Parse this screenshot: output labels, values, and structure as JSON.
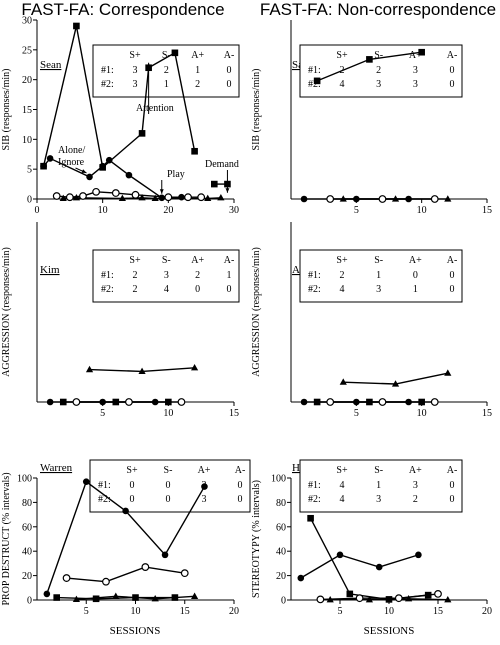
{
  "titles": {
    "left": "FAST-FA: Correspondence",
    "right": "FAST-FA: Non-correspondence"
  },
  "xlabel": "SESSIONS",
  "panels": [
    {
      "id": "sean",
      "subject": "Sean",
      "ylabel": "SIB (responses/min)",
      "table": {
        "headers": [
          "S+",
          "S-",
          "A+",
          "A-"
        ],
        "rows": [
          {
            "label": "#1:",
            "values": [
              "3",
              "2",
              "1",
              "0"
            ]
          },
          {
            "label": "#2:",
            "values": [
              "3",
              "1",
              "2",
              "0"
            ]
          }
        ]
      },
      "annotations": [
        "Alone/",
        "Ignore",
        "Attention",
        "Play",
        "Demand"
      ]
    },
    {
      "id": "sarah",
      "subject": "Sarah",
      "ylabel": "SIB (responses/min)",
      "table": {
        "headers": [
          "S+",
          "S-",
          "A+",
          "A-"
        ],
        "rows": [
          {
            "label": "#1:",
            "values": [
              "2",
              "2",
              "3",
              "0"
            ]
          },
          {
            "label": "#2:",
            "values": [
              "4",
              "3",
              "3",
              "0"
            ]
          }
        ]
      }
    },
    {
      "id": "kim",
      "subject": "Kim",
      "ylabel": "AGGRESSION (responses/min)",
      "table": {
        "headers": [
          "S+",
          "S-",
          "A+",
          "A-"
        ],
        "rows": [
          {
            "label": "#1:",
            "values": [
              "2",
              "3",
              "2",
              "1"
            ]
          },
          {
            "label": "#2:",
            "values": [
              "2",
              "4",
              "0",
              "0"
            ]
          }
        ]
      }
    },
    {
      "id": "albert",
      "subject": "Albert",
      "ylabel": "AGGRESSION (responses/min)",
      "table": {
        "headers": [
          "S+",
          "S-",
          "A+",
          "A-"
        ],
        "rows": [
          {
            "label": "#1:",
            "values": [
              "2",
              "1",
              "0",
              "0"
            ]
          },
          {
            "label": "#2:",
            "values": [
              "4",
              "3",
              "1",
              "0"
            ]
          }
        ]
      }
    },
    {
      "id": "warren",
      "subject": "Warren",
      "ylabel": "PROP DESTRUCT (% intervals)",
      "table": {
        "headers": [
          "S+",
          "S-",
          "A+",
          "A-"
        ],
        "rows": [
          {
            "label": "#1:",
            "values": [
              "0",
              "0",
              "3",
              "0"
            ]
          },
          {
            "label": "#2:",
            "values": [
              "0",
              "0",
              "3",
              "0"
            ]
          }
        ]
      }
    },
    {
      "id": "heather",
      "subject": "Heather",
      "ylabel": "STEREOTYPY (% intervals)",
      "table": {
        "headers": [
          "S+",
          "S-",
          "A+",
          "A-"
        ],
        "rows": [
          {
            "label": "#1:",
            "values": [
              "4",
              "1",
              "3",
              "0"
            ]
          },
          {
            "label": "#2:",
            "values": [
              "4",
              "3",
              "2",
              "0"
            ]
          }
        ]
      }
    }
  ],
  "chart_data": [
    {
      "type": "line",
      "panel": "sean",
      "xlim": [
        0,
        30
      ],
      "xticks": [
        "0",
        "10",
        "20",
        "30"
      ],
      "ylim": [
        0,
        30
      ],
      "yticks": [
        "0",
        "5",
        "10",
        "15",
        "20",
        "25",
        "30"
      ],
      "series": [
        {
          "marker": "circle-filled",
          "x": [
            1,
            2,
            8,
            10,
            11,
            14,
            19,
            22
          ],
          "y": [
            5.5,
            6.8,
            3.7,
            5.5,
            6.5,
            4,
            0.2,
            0.3
          ]
        },
        {
          "marker": "square",
          "x": [
            1,
            6,
            10,
            16,
            17,
            21,
            24
          ],
          "y": [
            5.5,
            29,
            5.3,
            11,
            22,
            24.5,
            8
          ]
        },
        {
          "marker": "square",
          "x": [
            27,
            29
          ],
          "y": [
            2.5,
            2.5
          ]
        },
        {
          "marker": "circle-open",
          "x": [
            3,
            5,
            7,
            9,
            12,
            15,
            20,
            23,
            25
          ],
          "y": [
            0.5,
            0.3,
            0.5,
            1.2,
            1,
            0.7,
            0.3,
            0.3,
            0.3
          ]
        },
        {
          "marker": "triangle",
          "x": [
            4,
            6,
            13,
            16,
            18,
            26,
            28
          ],
          "y": [
            0.1,
            0.2,
            0.1,
            0.2,
            0.1,
            0.1,
            0.2
          ]
        }
      ]
    },
    {
      "type": "line",
      "panel": "sarah",
      "xlim": [
        0,
        15
      ],
      "xticks": [
        "5",
        "10",
        "15"
      ],
      "ylim": [
        0,
        10
      ],
      "yticks": [],
      "series": [
        {
          "marker": "square",
          "x": [
            2,
            6,
            10
          ],
          "y": [
            6.6,
            7.8,
            8.2
          ]
        },
        {
          "marker": "circle-filled",
          "x": [
            1,
            5,
            9
          ],
          "y": [
            0,
            0,
            0
          ]
        },
        {
          "marker": "circle-open",
          "x": [
            3,
            7,
            11
          ],
          "y": [
            0,
            0,
            0
          ]
        },
        {
          "marker": "triangle",
          "x": [
            4,
            8,
            12
          ],
          "y": [
            0,
            0,
            0
          ]
        }
      ]
    },
    {
      "type": "line",
      "panel": "kim",
      "xlim": [
        0,
        15
      ],
      "xticks": [
        "5",
        "10",
        "15"
      ],
      "ylim": [
        0,
        10
      ],
      "yticks": [],
      "series": [
        {
          "marker": "triangle",
          "x": [
            4,
            8,
            12
          ],
          "y": [
            1.8,
            1.7,
            1.9
          ]
        },
        {
          "marker": "circle-filled",
          "x": [
            1,
            5,
            9
          ],
          "y": [
            0,
            0,
            0
          ]
        },
        {
          "marker": "square",
          "x": [
            2,
            6,
            10
          ],
          "y": [
            0,
            0,
            0
          ]
        },
        {
          "marker": "circle-open",
          "x": [
            3,
            7,
            11
          ],
          "y": [
            0,
            0,
            0
          ]
        }
      ]
    },
    {
      "type": "line",
      "panel": "albert",
      "xlim": [
        0,
        15
      ],
      "xticks": [
        "5",
        "10",
        "15"
      ],
      "ylim": [
        0,
        10
      ],
      "yticks": [],
      "series": [
        {
          "marker": "triangle",
          "x": [
            4,
            8,
            12
          ],
          "y": [
            1.1,
            1.0,
            1.6
          ]
        },
        {
          "marker": "circle-filled",
          "x": [
            1,
            5,
            9
          ],
          "y": [
            0,
            0,
            0
          ]
        },
        {
          "marker": "square",
          "x": [
            2,
            6,
            10
          ],
          "y": [
            0,
            0,
            0
          ]
        },
        {
          "marker": "circle-open",
          "x": [
            3,
            7,
            11
          ],
          "y": [
            0,
            0,
            0
          ]
        }
      ]
    },
    {
      "type": "line",
      "panel": "warren",
      "xlim": [
        0,
        20
      ],
      "xticks": [
        "5",
        "10",
        "15",
        "20"
      ],
      "ylim": [
        0,
        100
      ],
      "yticks": [
        "0",
        "20",
        "40",
        "60",
        "80",
        "100"
      ],
      "series": [
        {
          "marker": "circle-filled",
          "x": [
            1,
            5,
            9,
            13,
            17
          ],
          "y": [
            5,
            97,
            73,
            37,
            93
          ]
        },
        {
          "marker": "circle-open",
          "x": [
            3,
            7,
            11,
            15
          ],
          "y": [
            18,
            15,
            27,
            22
          ]
        },
        {
          "marker": "square",
          "x": [
            2,
            6,
            10,
            14
          ],
          "y": [
            2,
            1,
            2,
            2
          ]
        },
        {
          "marker": "triangle",
          "x": [
            4,
            8,
            12,
            16
          ],
          "y": [
            0.5,
            3,
            1,
            3
          ]
        }
      ]
    },
    {
      "type": "line",
      "panel": "heather",
      "xlim": [
        0,
        20
      ],
      "xticks": [
        "5",
        "10",
        "15",
        "20"
      ],
      "ylim": [
        0,
        100
      ],
      "yticks": [
        "0",
        "20",
        "40",
        "60",
        "80",
        "100"
      ],
      "series": [
        {
          "marker": "circle-filled",
          "x": [
            1,
            5,
            9,
            13
          ],
          "y": [
            18,
            37,
            27,
            37
          ]
        },
        {
          "marker": "square",
          "x": [
            2,
            6,
            10,
            14
          ],
          "y": [
            67,
            5,
            0.5,
            4
          ]
        },
        {
          "marker": "circle-open",
          "x": [
            3,
            7,
            11,
            15
          ],
          "y": [
            0.5,
            1.5,
            1.5,
            5
          ]
        },
        {
          "marker": "triangle",
          "x": [
            4,
            8,
            12,
            16
          ],
          "y": [
            0.2,
            0.2,
            1,
            0.2
          ]
        }
      ]
    }
  ]
}
